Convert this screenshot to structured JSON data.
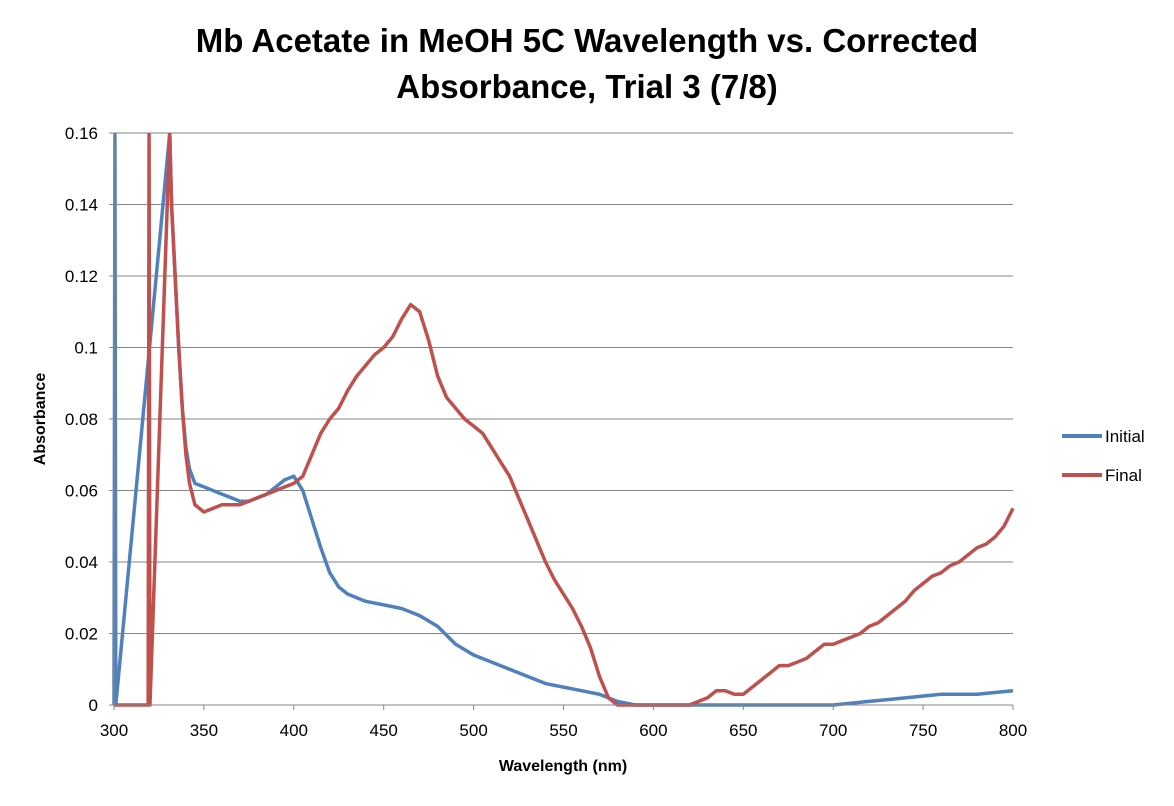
{
  "chart_data": {
    "type": "line",
    "title_line1": "Mb Acetate in MeOH 5C Wavelength vs. Corrected",
    "title_line2": "Absorbance, Trial 3 (7/8)",
    "xlabel": "Wavelength (nm)",
    "ylabel": "Absorbance",
    "xlim": [
      300,
      800
    ],
    "ylim": [
      0,
      0.16
    ],
    "x_ticks": [
      300,
      350,
      400,
      450,
      500,
      550,
      600,
      650,
      700,
      750,
      800
    ],
    "x_tick_labels": [
      "300",
      "350",
      "400",
      "450",
      "500",
      "550",
      "600",
      "650",
      "700",
      "750",
      "800"
    ],
    "y_ticks": [
      0,
      0.02,
      0.04,
      0.06,
      0.08,
      0.1,
      0.12,
      0.14,
      0.16
    ],
    "y_tick_labels": [
      "0",
      "0.02",
      "0.04",
      "0.06",
      "0.08",
      "0.1",
      "0.12",
      "0.14",
      "0.16"
    ],
    "grid": "horizontal major gridlines",
    "legend_position": "right",
    "series": [
      {
        "name": "Initial",
        "color": "#4F81BD",
        "x": [
          300,
          300.5,
          301,
          331,
          332,
          334,
          336,
          338,
          340,
          342,
          345,
          350,
          355,
          360,
          365,
          370,
          375,
          380,
          385,
          390,
          395,
          400,
          405,
          410,
          415,
          420,
          425,
          430,
          440,
          450,
          460,
          470,
          480,
          490,
          500,
          510,
          520,
          530,
          540,
          550,
          560,
          570,
          575,
          580,
          590,
          600,
          620,
          650,
          680,
          700,
          720,
          740,
          760,
          780,
          800
        ],
        "y": [
          0,
          0.16,
          0,
          0.16,
          0.14,
          0.12,
          0.1,
          0.083,
          0.072,
          0.066,
          0.062,
          0.061,
          0.06,
          0.059,
          0.058,
          0.057,
          0.057,
          0.058,
          0.059,
          0.061,
          0.063,
          0.064,
          0.06,
          0.052,
          0.044,
          0.037,
          0.033,
          0.031,
          0.029,
          0.028,
          0.027,
          0.025,
          0.022,
          0.017,
          0.014,
          0.012,
          0.01,
          0.008,
          0.006,
          0.005,
          0.004,
          0.003,
          0.002,
          0.001,
          0,
          0,
          0,
          0,
          0,
          0,
          0.001,
          0.002,
          0.003,
          0.003,
          0.004
        ]
      },
      {
        "name": "Final",
        "color": "#C0504D",
        "x": [
          300,
          319,
          319.5,
          320,
          331,
          332,
          334,
          336,
          338,
          340,
          342,
          345,
          350,
          355,
          360,
          365,
          370,
          375,
          380,
          385,
          390,
          395,
          400,
          405,
          410,
          415,
          420,
          425,
          430,
          435,
          440,
          445,
          450,
          455,
          460,
          465,
          470,
          475,
          480,
          485,
          490,
          495,
          500,
          505,
          510,
          515,
          520,
          525,
          530,
          535,
          540,
          545,
          550,
          555,
          560,
          565,
          570,
          575,
          580,
          600,
          620,
          630,
          635,
          640,
          645,
          650,
          655,
          660,
          665,
          670,
          675,
          680,
          685,
          690,
          695,
          700,
          705,
          710,
          715,
          720,
          725,
          730,
          735,
          740,
          745,
          750,
          755,
          760,
          765,
          770,
          775,
          780,
          785,
          790,
          795,
          800
        ],
        "y": [
          0,
          0,
          0.16,
          0,
          0.16,
          0.14,
          0.12,
          0.1,
          0.083,
          0.07,
          0.062,
          0.056,
          0.054,
          0.055,
          0.056,
          0.056,
          0.056,
          0.057,
          0.058,
          0.059,
          0.06,
          0.061,
          0.062,
          0.064,
          0.07,
          0.076,
          0.08,
          0.083,
          0.088,
          0.092,
          0.095,
          0.098,
          0.1,
          0.103,
          0.108,
          0.112,
          0.11,
          0.102,
          0.092,
          0.086,
          0.083,
          0.08,
          0.078,
          0.076,
          0.072,
          0.068,
          0.064,
          0.058,
          0.052,
          0.046,
          0.04,
          0.035,
          0.031,
          0.027,
          0.022,
          0.016,
          0.008,
          0.002,
          0,
          0,
          0,
          0.002,
          0.004,
          0.004,
          0.003,
          0.003,
          0.005,
          0.007,
          0.009,
          0.011,
          0.011,
          0.012,
          0.013,
          0.015,
          0.017,
          0.017,
          0.018,
          0.019,
          0.02,
          0.022,
          0.023,
          0.025,
          0.027,
          0.029,
          0.032,
          0.034,
          0.036,
          0.037,
          0.039,
          0.04,
          0.042,
          0.044,
          0.045,
          0.047,
          0.05,
          0.055
        ]
      }
    ]
  }
}
